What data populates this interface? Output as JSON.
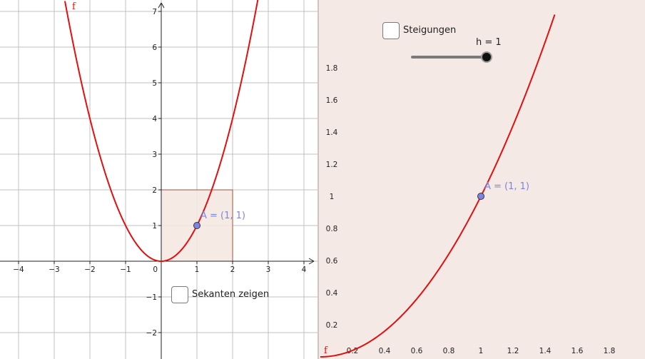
{
  "left_view": {
    "function_label": "f",
    "point_label": "A = (1, 1)",
    "x_ticks": [
      {
        "value": -4,
        "label": "−4"
      },
      {
        "value": -3,
        "label": "−3"
      },
      {
        "value": -2,
        "label": "−2"
      },
      {
        "value": -1,
        "label": "−1"
      },
      {
        "value": 1,
        "label": "1"
      },
      {
        "value": 2,
        "label": "2"
      },
      {
        "value": 3,
        "label": "3"
      },
      {
        "value": 4,
        "label": "4"
      }
    ],
    "y_ticks": [
      {
        "value": -2,
        "label": "−2"
      },
      {
        "value": -1,
        "label": "−1"
      },
      {
        "value": 1,
        "label": "1"
      },
      {
        "value": 2,
        "label": "2"
      },
      {
        "value": 3,
        "label": "3"
      },
      {
        "value": 4,
        "label": "4"
      },
      {
        "value": 5,
        "label": "5"
      },
      {
        "value": 6,
        "label": "6"
      },
      {
        "value": 7,
        "label": "7"
      }
    ],
    "origin_label": "0",
    "checkbox": {
      "label": "Sekanten zeigen",
      "checked": false
    }
  },
  "right_view": {
    "function_label": "f",
    "point_label": "A = (1, 1)",
    "x_ticks": [
      {
        "value": 0.2,
        "label": "0.2"
      },
      {
        "value": 0.4,
        "label": "0.4"
      },
      {
        "value": 0.6,
        "label": "0.6"
      },
      {
        "value": 0.8,
        "label": "0.8"
      },
      {
        "value": 1,
        "label": "1"
      },
      {
        "value": 1.2,
        "label": "1.2"
      },
      {
        "value": 1.4,
        "label": "1.4"
      },
      {
        "value": 1.6,
        "label": "1.6"
      },
      {
        "value": 1.8,
        "label": "1.8"
      }
    ],
    "y_ticks": [
      {
        "value": 0.2,
        "label": "0.2"
      },
      {
        "value": 0.4,
        "label": "0.4"
      },
      {
        "value": 0.6,
        "label": "0.6"
      },
      {
        "value": 0.8,
        "label": "0.8"
      },
      {
        "value": 1,
        "label": "1"
      },
      {
        "value": 1.2,
        "label": "1.2"
      },
      {
        "value": 1.4,
        "label": "1.4"
      },
      {
        "value": 1.6,
        "label": "1.6"
      },
      {
        "value": 1.8,
        "label": "1.8"
      }
    ],
    "checkbox": {
      "label": "Steigungen",
      "checked": false
    },
    "slider": {
      "label": "h = 1",
      "value": 1,
      "min": 0,
      "max": 1
    }
  },
  "colors": {
    "curve": "#e01010",
    "point_fill": "#7d84e8",
    "point_label": "#7d84e0",
    "rect_fill": "#f4e6e1",
    "rect_stroke": "#a0523c",
    "right_bg": "#f5e9e5",
    "grid": "#c0c0c0",
    "slider_track": "#7a7a7a",
    "slider_knob": "#111111"
  }
}
